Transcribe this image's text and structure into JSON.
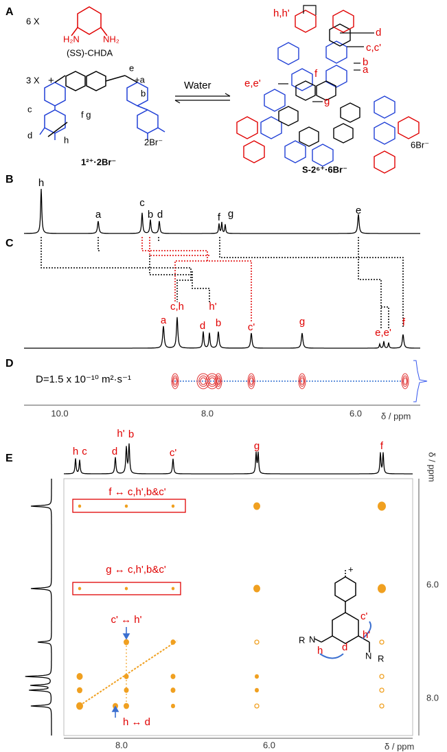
{
  "panel_a": {
    "label": "A",
    "reagent_count": "6 X",
    "amine_left": "H₂N",
    "amine_right": "NH₂",
    "reagent_name": "(SS)-CHDA",
    "linker_count": "3 X",
    "labels": [
      "e",
      "+a",
      "b",
      "c",
      "d",
      "f g",
      "h"
    ],
    "counter_ion": "2Br⁻",
    "compound": "1²⁺·2Br⁻",
    "solvent": "Water",
    "cage_labels": [
      "h,h'",
      "d",
      "c,c'",
      "b",
      "a",
      "e,e'",
      "f",
      "g"
    ],
    "cage_counter_ion": "6Br⁻",
    "cage": "S-2⁶⁺·6Br⁻"
  },
  "panel_b": {
    "label": "B",
    "peaks": [
      "h",
      "a",
      "c",
      "b",
      "d",
      "f",
      "g",
      "e"
    ]
  },
  "panel_c": {
    "label": "C",
    "peaks": [
      "a",
      "c,h",
      "d",
      "h'",
      "b",
      "c'",
      "g",
      "e,e'",
      "f"
    ]
  },
  "panel_d": {
    "label": "D",
    "diffusion": "D=1.5 x 10⁻¹⁰ m²·s⁻¹"
  },
  "axis_1d": {
    "ticks": [
      "10.0",
      "8.0",
      "6.0"
    ],
    "label": "δ / ppm"
  },
  "panel_e": {
    "label": "E",
    "peaks": [
      "h",
      "c",
      "d",
      "h'",
      "b",
      "c'",
      "g",
      "f"
    ],
    "box_f": "f ↔ c,h',b&c'",
    "box_g": "g ↔ c,h',b&c'",
    "noe_1": "c' ↔ h'",
    "noe_2": "h ↔ d",
    "y_axis": {
      "label": "δ / ppm",
      "ticks": [
        "6.0",
        "8.0"
      ]
    },
    "x_axis": {
      "ticks": [
        "8.0",
        "6.0"
      ],
      "label": "δ / ppm"
    },
    "structure_labels": [
      "+",
      "R",
      "N",
      "h",
      "d",
      "c'",
      "h'",
      "N",
      "R"
    ]
  }
}
